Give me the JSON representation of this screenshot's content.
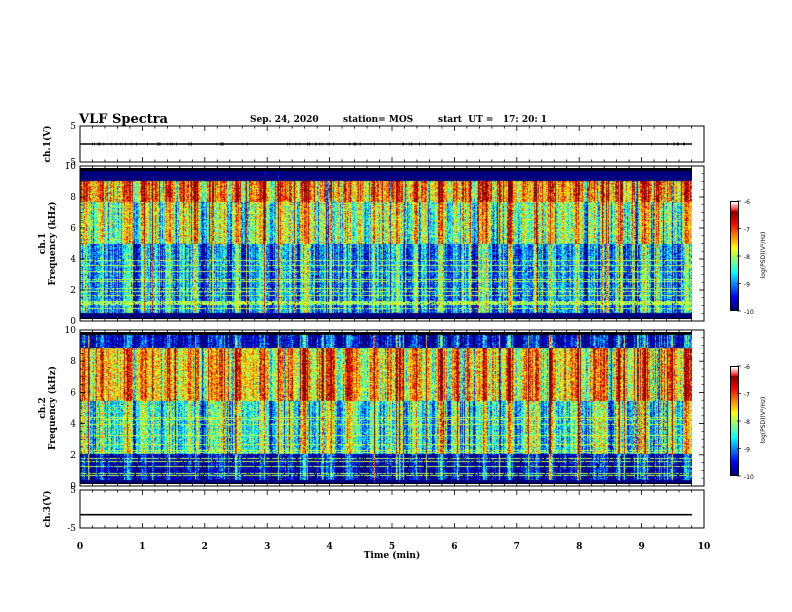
{
  "header": {
    "title": "VLF Spectra",
    "date": "Sep. 24, 2020",
    "station": "station= MOS",
    "start": "start  UT =   17: 20: 1"
  },
  "chart_data": [
    {
      "type": "line",
      "name": "ch1-waveform",
      "ylabel": "ch.1(V)",
      "ylim": [
        -5,
        5
      ],
      "yticks": [
        "5",
        "-5"
      ],
      "xlim": [
        0,
        10
      ],
      "series_level": 0
    },
    {
      "type": "heatmap",
      "name": "ch1-spectrogram",
      "ylabel": "ch.1\nFrequency (kHz)",
      "ylim": [
        0,
        10
      ],
      "yticks": [
        "0",
        "2",
        "4",
        "6",
        "8",
        "10"
      ],
      "xlim": [
        0,
        10
      ],
      "colorbar": {
        "label": "log(PSD)(V²/Hz)",
        "ticks": [
          "-6",
          "-7",
          "-8",
          "-9",
          "-10"
        ],
        "range": [
          -10,
          -6
        ]
      }
    },
    {
      "type": "heatmap",
      "name": "ch2-spectrogram",
      "ylabel": "ch.2\nFrequency (kHz)",
      "ylim": [
        0,
        10
      ],
      "yticks": [
        "0",
        "2",
        "4",
        "6",
        "8",
        "10"
      ],
      "xlim": [
        0,
        10
      ],
      "colorbar": {
        "label": "log(PSD)(V²/Hz)",
        "ticks": [
          "-6",
          "-7",
          "-8",
          "-9",
          "-10"
        ],
        "range": [
          -10,
          -6
        ]
      }
    },
    {
      "type": "line",
      "name": "ch3-waveform",
      "ylabel": "ch.3(V)",
      "ylim": [
        -5,
        5
      ],
      "yticks": [
        "5",
        "-5"
      ],
      "xlim": [
        0,
        10
      ],
      "series_level": -1.5
    }
  ],
  "xaxis": {
    "label": "Time (min)",
    "ticks": [
      "0",
      "1",
      "2",
      "3",
      "4",
      "5",
      "6",
      "7",
      "8",
      "9",
      "10"
    ]
  },
  "colors": {
    "axis": "#000000",
    "jet": [
      "#00007f",
      "#0000ff",
      "#00bfff",
      "#00ffa0",
      "#7fff00",
      "#ffff00",
      "#ff7f00",
      "#ff0000",
      "#ffffff"
    ]
  }
}
